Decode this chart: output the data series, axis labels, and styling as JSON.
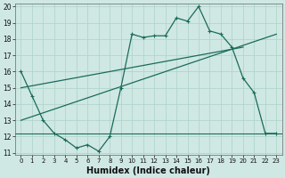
{
  "xlabel": "Humidex (Indice chaleur)",
  "ylabel": "",
  "bg_color": "#cfe8e3",
  "grid_color": "#b0d5cc",
  "line_color": "#1a6b5a",
  "xlim": [
    -0.5,
    23.5
  ],
  "ylim": [
    11,
    20
  ],
  "xticks": [
    0,
    1,
    2,
    3,
    4,
    5,
    6,
    7,
    8,
    9,
    10,
    11,
    12,
    13,
    14,
    15,
    16,
    17,
    18,
    19,
    20,
    21,
    22,
    23
  ],
  "yticks": [
    11,
    12,
    13,
    14,
    15,
    16,
    17,
    18,
    19,
    20
  ],
  "main_x": [
    0,
    1,
    2,
    3,
    4,
    5,
    6,
    7,
    8,
    9,
    10,
    11,
    12,
    13,
    14,
    15,
    16,
    17,
    18,
    19,
    20,
    21,
    22,
    23
  ],
  "main_y": [
    16,
    14.5,
    13.0,
    12.2,
    11.8,
    11.3,
    11.5,
    11.1,
    12.0,
    15.0,
    18.3,
    18.1,
    18.2,
    18.2,
    19.3,
    19.1,
    20.0,
    18.5,
    18.3,
    17.5,
    15.6,
    14.7,
    12.2,
    12.2
  ],
  "trend1_x": [
    0,
    23
  ],
  "trend1_y": [
    13.0,
    18.3
  ],
  "trend2_x": [
    0,
    20
  ],
  "trend2_y": [
    15.0,
    17.5
  ],
  "hline_y": 12.2,
  "tick_fontsize": 5.5,
  "xlabel_fontsize": 7
}
